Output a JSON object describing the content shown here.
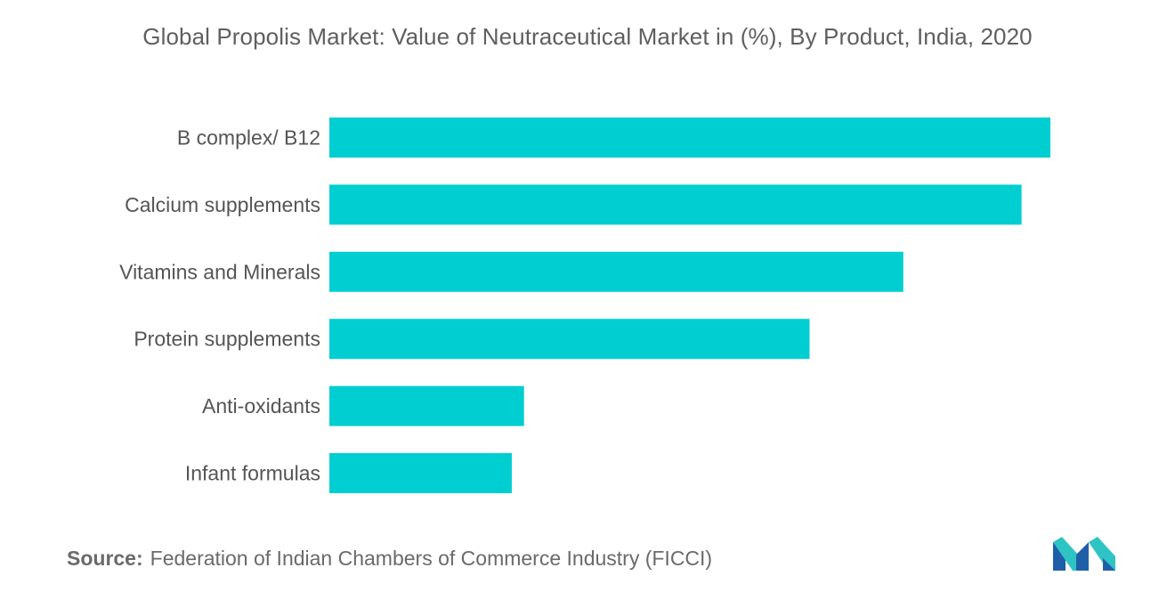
{
  "chart_data": {
    "type": "bar",
    "orientation": "horizontal",
    "title": "Global Propolis Market: Value of Neutraceutical Market in (%), By Product, India, 2020",
    "categories": [
      "B complex/ B12",
      "Calcium supplements",
      "Vitamins and Minerals",
      "Protein supplements",
      "Anti-oxidants",
      "Infant formulas"
    ],
    "values": [
      100,
      96,
      79.6,
      66.6,
      27,
      25.3
    ],
    "xlabel": "",
    "ylabel": "",
    "xlim": [
      0,
      100
    ],
    "grid": false,
    "legend": "none",
    "bar_color": "#00ced1"
  },
  "source": {
    "label": "Source:",
    "text": "Federation of Indian Chambers of Commerce Industry (FICCI)"
  },
  "logo": {
    "icon": "mordor-intelligence-logo-icon",
    "colors": [
      "#1f5fa8",
      "#2ec4c4"
    ]
  }
}
